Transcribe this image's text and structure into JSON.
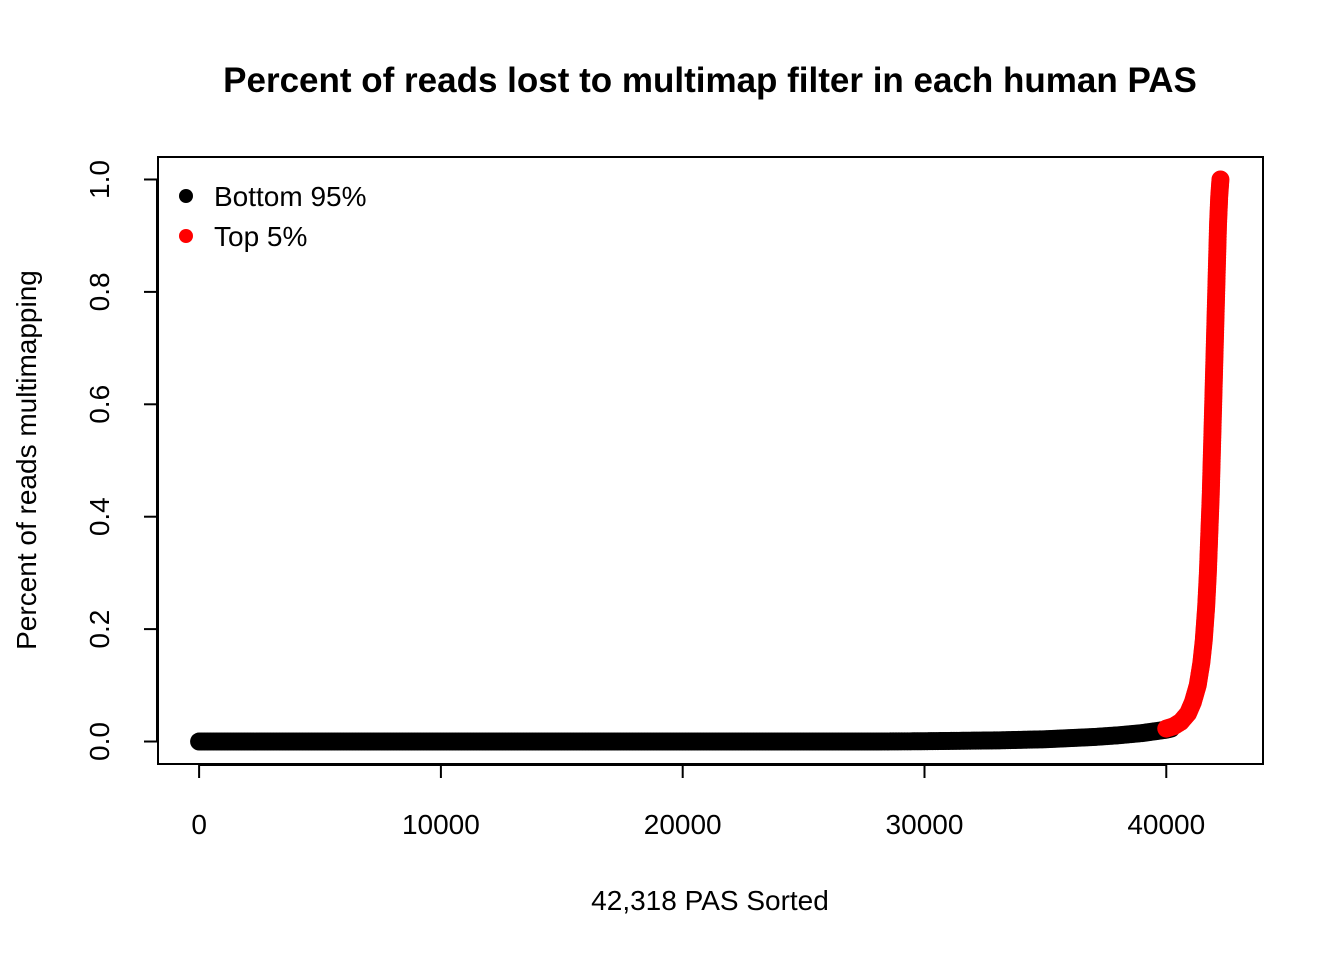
{
  "chart_data": {
    "type": "scatter",
    "title": "Percent of reads lost to multimap filter in each human PAS",
    "xlabel": "42,318 PAS Sorted",
    "ylabel": "Percent of reads multimapping",
    "xlim": [
      -1700,
      44000
    ],
    "ylim": [
      -0.04,
      1.04
    ],
    "x_ticks": [
      0,
      10000,
      20000,
      30000,
      40000
    ],
    "y_ticks": [
      0.0,
      0.2,
      0.4,
      0.6,
      0.8,
      1.0
    ],
    "x_tick_labels": [
      "0",
      "10000",
      "20000",
      "30000",
      "40000"
    ],
    "y_tick_labels": [
      "0.0",
      "0.2",
      "0.4",
      "0.6",
      "0.8",
      "1.0"
    ],
    "grid": false,
    "legend_position": "top-left",
    "series": [
      {
        "name": "Bottom 95%",
        "color": "#000000",
        "x": [
          0,
          2000,
          5000,
          10000,
          15000,
          20000,
          25000,
          28000,
          30000,
          31000,
          32000,
          33000,
          34000,
          35000,
          36000,
          37000,
          38000,
          39000,
          39500,
          40000,
          40200
        ],
        "y": [
          0.0,
          0.0,
          0.0,
          0.0,
          0.0,
          0.0,
          0.0,
          0.0,
          0.0005,
          0.001,
          0.0015,
          0.002,
          0.003,
          0.004,
          0.006,
          0.008,
          0.011,
          0.015,
          0.018,
          0.021,
          0.023
        ]
      },
      {
        "name": "Top 5%",
        "color": "#ff0000",
        "x": [
          40000,
          40300,
          40600,
          40900,
          41100,
          41300,
          41450,
          41550,
          41650,
          41720,
          41780,
          41840,
          41890,
          41940,
          41990,
          42040,
          42090,
          42140,
          42190,
          42240
        ],
        "y": [
          0.023,
          0.027,
          0.035,
          0.05,
          0.07,
          0.1,
          0.14,
          0.18,
          0.24,
          0.3,
          0.37,
          0.44,
          0.52,
          0.6,
          0.68,
          0.76,
          0.84,
          0.92,
          0.97,
          1.0
        ]
      }
    ]
  }
}
